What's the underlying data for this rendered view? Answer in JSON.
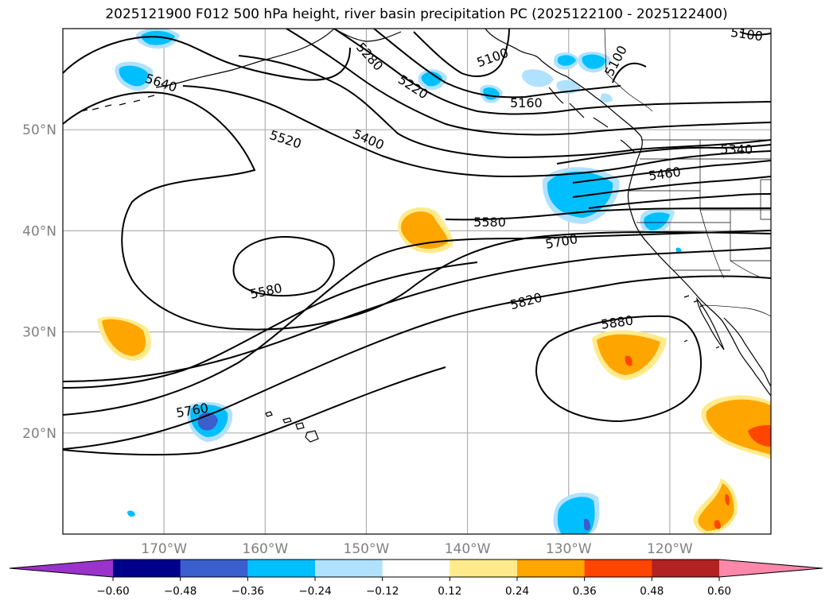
{
  "title": "2025121900 F012 500 hPa height, river basin precipitation PC (2025122100 - 2025122400)",
  "colors": {
    "ocean": "#ffffff",
    "grid": "#b0b0b0",
    "contour": "#000000",
    "coast": "#000000"
  },
  "map_axes": {
    "lon_range": [
      -180,
      -110
    ],
    "lat_range": [
      10,
      60
    ],
    "lat_ticks": [
      {
        "value": 50,
        "label": "50°N"
      },
      {
        "value": 40,
        "label": "40°N"
      },
      {
        "value": 30,
        "label": "30°N"
      },
      {
        "value": 20,
        "label": "20°N"
      }
    ],
    "lon_ticks": [
      {
        "value": -170,
        "label": "170°W"
      },
      {
        "value": -160,
        "label": "160°W"
      },
      {
        "value": -150,
        "label": "150°W"
      },
      {
        "value": -140,
        "label": "140°W"
      },
      {
        "value": -130,
        "label": "130°W"
      },
      {
        "value": -120,
        "label": "120°W"
      }
    ]
  },
  "colorbar": {
    "colors": [
      "#9933cc",
      "#00008b",
      "#3a5fcd",
      "#00bfff",
      "#b0e2ff",
      "#ffffff",
      "#ffeb8c",
      "#ffa500",
      "#ff4500",
      "#b22222",
      "#ff88aa"
    ],
    "tick_labels": [
      "−0.60",
      "−0.48",
      "−0.36",
      "−0.24",
      "−0.12",
      "0.12",
      "0.24",
      "0.36",
      "0.48",
      "0.60"
    ]
  },
  "contour_labels": [
    {
      "text": "5640",
      "lon": -170.3,
      "lat": 54.6,
      "angle": 18
    },
    {
      "text": "5520",
      "lon": -158.0,
      "lat": 49.0,
      "angle": 18
    },
    {
      "text": "5400",
      "lon": -149.8,
      "lat": 49.0,
      "angle": 23
    },
    {
      "text": "5280",
      "lon": -149.7,
      "lat": 57.2,
      "angle": 48
    },
    {
      "text": "5220",
      "lon": -145.4,
      "lat": 54.2,
      "angle": 33
    },
    {
      "text": "5100",
      "lon": -137.5,
      "lat": 57.1,
      "angle": -20
    },
    {
      "text": "5160",
      "lon": -134.2,
      "lat": 52.6,
      "angle": 0
    },
    {
      "text": "5100",
      "lon": -125.3,
      "lat": 56.8,
      "angle": -62
    },
    {
      "text": "5100",
      "lon": -112.4,
      "lat": 59.4,
      "angle": 8
    },
    {
      "text": "5340",
      "lon": -113.4,
      "lat": 48.0,
      "angle": 0
    },
    {
      "text": "5460",
      "lon": -120.5,
      "lat": 45.6,
      "angle": -8
    },
    {
      "text": "5580",
      "lon": -137.8,
      "lat": 40.8,
      "angle": 0
    },
    {
      "text": "5700",
      "lon": -130.7,
      "lat": 38.9,
      "angle": -10
    },
    {
      "text": "5580",
      "lon": -159.9,
      "lat": 34.0,
      "angle": -12
    },
    {
      "text": "5820",
      "lon": -134.2,
      "lat": 33.0,
      "angle": -15
    },
    {
      "text": "5880",
      "lon": -125.2,
      "lat": 30.9,
      "angle": -8
    },
    {
      "text": "5760",
      "lon": -167.2,
      "lat": 22.2,
      "angle": -10
    }
  ]
}
